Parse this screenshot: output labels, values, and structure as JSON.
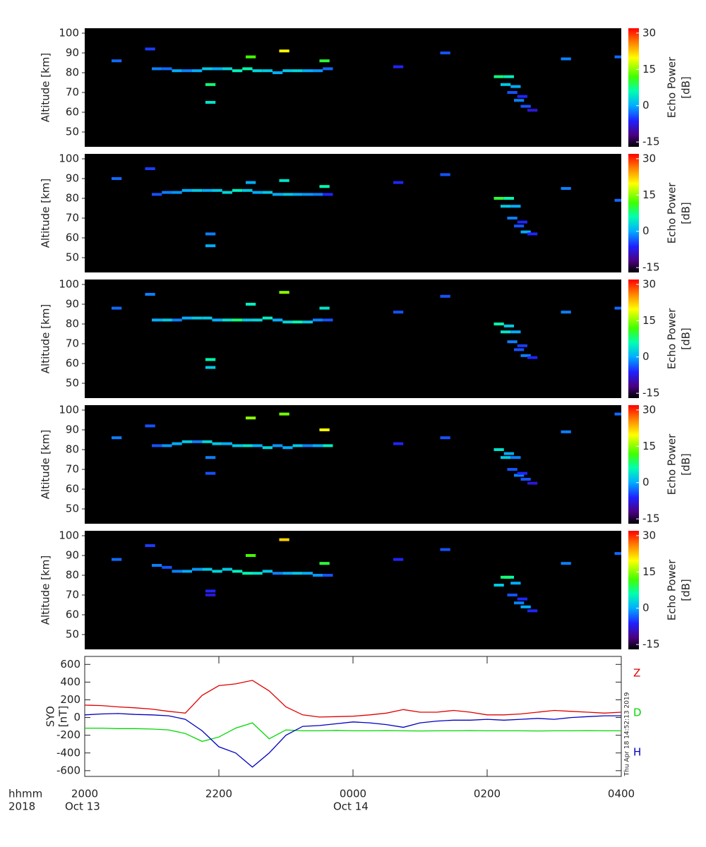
{
  "chart_data": [
    {
      "type": "heatmap",
      "ylabel": "Altitude [km]",
      "xlim": [
        20,
        28
      ],
      "ylim": [
        42.5,
        102.5
      ],
      "yticks": [
        50,
        60,
        70,
        80,
        90,
        100
      ],
      "colorbar": {
        "label": [
          "Echo Power",
          "[dB]"
        ],
        "clim": [
          -17,
          32
        ],
        "ticks": [
          -15,
          0,
          15,
          30
        ]
      },
      "x": [
        21.0,
        21.15,
        21.3,
        21.45,
        21.6,
        21.75,
        21.9,
        22.05,
        22.2,
        22.35,
        22.5,
        22.65,
        22.8,
        22.95,
        23.1,
        23.25,
        23.4,
        23.55,
        26.1,
        26.25,
        26.2,
        26.35,
        26.3,
        26.4,
        26.5,
        26.6,
        26.45,
        20.4,
        20.9,
        22.4,
        22.9,
        23.5,
        21.8,
        21.8,
        25.3,
        27.1,
        27.9,
        24.6
      ],
      "y": [
        82,
        82,
        81,
        81,
        81,
        82,
        82,
        82,
        81,
        82,
        81,
        81,
        80,
        81,
        81,
        81,
        81,
        82,
        78,
        78,
        74,
        73,
        70,
        66,
        63,
        61,
        68,
        86,
        92,
        88,
        91,
        86,
        74,
        65,
        90,
        87,
        88,
        83
      ],
      "values": [
        -2,
        -3,
        0,
        -2,
        0,
        2,
        0,
        3,
        5,
        6,
        3,
        2,
        0,
        2,
        3,
        0,
        -1,
        -3,
        8,
        5,
        2,
        0,
        -4,
        -2,
        -4,
        -8,
        -6,
        -3,
        -5,
        12,
        20,
        10,
        8,
        4,
        -4,
        -2,
        -3,
        -6
      ]
    },
    {
      "type": "heatmap",
      "ylabel": "Altitude [km]",
      "xlim": [
        20,
        28
      ],
      "ylim": [
        42.5,
        102.5
      ],
      "yticks": [
        50,
        60,
        70,
        80,
        90,
        100
      ],
      "colorbar": {
        "label": [
          "Echo Power",
          "[dB]"
        ],
        "clim": [
          -17,
          32
        ],
        "ticks": [
          -15,
          0,
          15,
          30
        ]
      },
      "x": [
        21.0,
        21.15,
        21.3,
        21.45,
        21.6,
        21.75,
        21.9,
        22.05,
        22.2,
        22.35,
        22.5,
        22.65,
        22.8,
        22.95,
        23.1,
        23.25,
        23.4,
        23.55,
        26.1,
        26.25,
        26.2,
        26.35,
        26.3,
        26.4,
        26.5,
        26.6,
        26.45,
        20.4,
        20.9,
        22.4,
        22.9,
        23.5,
        21.8,
        21.8,
        25.3,
        27.1,
        27.9,
        24.6
      ],
      "y": [
        82,
        83,
        83,
        84,
        84,
        84,
        84,
        83,
        84,
        84,
        83,
        83,
        82,
        82,
        82,
        82,
        82,
        82,
        80,
        80,
        76,
        76,
        70,
        66,
        63,
        62,
        68,
        90,
        95,
        88,
        89,
        86,
        62,
        56,
        92,
        85,
        79,
        88
      ],
      "values": [
        -4,
        -2,
        -1,
        0,
        2,
        0,
        2,
        3,
        5,
        2,
        0,
        2,
        0,
        2,
        0,
        -1,
        -2,
        -6,
        10,
        6,
        2,
        0,
        -2,
        -4,
        0,
        -6,
        -6,
        -3,
        -5,
        0,
        4,
        6,
        -2,
        0,
        -4,
        -2,
        -3,
        -6
      ]
    },
    {
      "type": "heatmap",
      "ylabel": "Altitude [km]",
      "xlim": [
        20,
        28
      ],
      "ylim": [
        42.5,
        102.5
      ],
      "yticks": [
        50,
        60,
        70,
        80,
        90,
        100
      ],
      "colorbar": {
        "label": [
          "Echo Power",
          "[dB]"
        ],
        "clim": [
          -17,
          32
        ],
        "ticks": [
          -15,
          0,
          15,
          30
        ]
      },
      "x": [
        21.0,
        21.15,
        21.3,
        21.45,
        21.6,
        21.75,
        21.9,
        22.05,
        22.2,
        22.35,
        22.5,
        22.65,
        22.8,
        22.95,
        23.1,
        23.25,
        23.4,
        23.55,
        26.1,
        26.25,
        26.2,
        26.35,
        26.3,
        26.4,
        26.5,
        26.6,
        26.45,
        20.4,
        20.9,
        22.4,
        22.9,
        23.5,
        21.8,
        21.8,
        25.3,
        27.1,
        27.9,
        24.6
      ],
      "y": [
        82,
        82,
        82,
        83,
        83,
        83,
        82,
        82,
        82,
        82,
        82,
        83,
        82,
        81,
        81,
        81,
        82,
        82,
        80,
        79,
        76,
        76,
        71,
        67,
        64,
        63,
        69,
        88,
        95,
        90,
        96,
        88,
        62,
        58,
        94,
        86,
        88,
        86
      ],
      "values": [
        0,
        2,
        -2,
        0,
        2,
        2,
        0,
        4,
        8,
        2,
        3,
        5,
        0,
        3,
        6,
        2,
        -2,
        -4,
        6,
        2,
        4,
        0,
        -2,
        -4,
        -2,
        -6,
        -5,
        -3,
        -2,
        5,
        15,
        4,
        6,
        2,
        -4,
        -2,
        -3,
        -4
      ]
    },
    {
      "type": "heatmap",
      "ylabel": "Altitude [km]",
      "xlim": [
        20,
        28
      ],
      "ylim": [
        42.5,
        102.5
      ],
      "yticks": [
        50,
        60,
        70,
        80,
        90,
        100
      ],
      "colorbar": {
        "label": [
          "Echo Power",
          "[dB]"
        ],
        "clim": [
          -17,
          32
        ],
        "ticks": [
          -15,
          0,
          15,
          30
        ]
      },
      "x": [
        21.0,
        21.15,
        21.3,
        21.45,
        21.6,
        21.75,
        21.9,
        22.05,
        22.2,
        22.35,
        22.5,
        22.65,
        22.8,
        22.95,
        23.1,
        23.25,
        23.4,
        23.55,
        26.1,
        26.25,
        26.2,
        26.35,
        26.3,
        26.4,
        26.5,
        26.6,
        26.45,
        20.4,
        20.9,
        22.4,
        22.9,
        23.5,
        21.8,
        21.8,
        25.3,
        27.1,
        27.9,
        24.6
      ],
      "y": [
        82,
        82,
        83,
        84,
        84,
        84,
        83,
        83,
        82,
        82,
        82,
        81,
        82,
        81,
        82,
        82,
        82,
        82,
        80,
        78,
        76,
        76,
        70,
        67,
        65,
        63,
        68,
        86,
        92,
        96,
        98,
        90,
        76,
        68,
        86,
        89,
        98,
        83
      ],
      "values": [
        -4,
        -1,
        0,
        2,
        -2,
        3,
        2,
        0,
        2,
        4,
        0,
        3,
        -1,
        0,
        2,
        -2,
        0,
        5,
        4,
        0,
        2,
        -2,
        -4,
        -2,
        -4,
        -8,
        -6,
        -2,
        -4,
        15,
        14,
        20,
        -2,
        -4,
        -4,
        -2,
        -3,
        -6
      ]
    },
    {
      "type": "heatmap",
      "ylabel": "Altitude [km]",
      "xlim": [
        20,
        28
      ],
      "ylim": [
        42.5,
        102.5
      ],
      "yticks": [
        50,
        60,
        70,
        80,
        90,
        100
      ],
      "colorbar": {
        "label": [
          "Echo Power",
          "[dB]"
        ],
        "clim": [
          -17,
          32
        ],
        "ticks": [
          -15,
          0,
          15,
          30
        ]
      },
      "x": [
        21.0,
        21.15,
        21.3,
        21.45,
        21.6,
        21.75,
        21.9,
        22.05,
        22.2,
        22.35,
        22.5,
        22.65,
        22.8,
        22.95,
        23.1,
        23.25,
        23.4,
        23.55,
        26.1,
        26.25,
        26.2,
        26.35,
        26.3,
        26.4,
        26.5,
        26.6,
        26.45,
        20.4,
        20.9,
        22.4,
        22.9,
        23.5,
        21.8,
        21.8,
        25.3,
        27.1,
        27.9,
        24.6
      ],
      "y": [
        85,
        84,
        82,
        82,
        83,
        83,
        82,
        83,
        82,
        81,
        81,
        82,
        81,
        81,
        81,
        81,
        80,
        80,
        75,
        79,
        79,
        76,
        70,
        66,
        64,
        62,
        68,
        88,
        95,
        90,
        98,
        86,
        72,
        70,
        93,
        86,
        91,
        88
      ],
      "values": [
        -2,
        -4,
        -2,
        0,
        -1,
        2,
        3,
        2,
        5,
        6,
        4,
        2,
        -2,
        0,
        2,
        0,
        -1,
        -4,
        2,
        6,
        8,
        0,
        -4,
        -2,
        0,
        -6,
        -6,
        -3,
        -5,
        12,
        22,
        10,
        -6,
        -8,
        -4,
        -2,
        -3,
        -6
      ]
    },
    {
      "type": "line",
      "ylabel": [
        "SYO",
        "[nT]"
      ],
      "xlabel": [
        "hhmm",
        "2018"
      ],
      "annotation": "Thu Apr 18 14:52:13 2019",
      "xlim": [
        20,
        28
      ],
      "xticks": [
        {
          "value": 20,
          "label": "2000"
        },
        {
          "value": 22,
          "label": "2200"
        },
        {
          "value": 24,
          "label": "0000"
        },
        {
          "value": 26,
          "label": "0200"
        },
        {
          "value": 28,
          "label": "0400"
        }
      ],
      "date_labels": [
        {
          "value": 20,
          "label": "Oct 13"
        },
        {
          "value": 24,
          "label": "Oct 14"
        }
      ],
      "ylim": [
        -665,
        690
      ],
      "yticks": [
        600,
        400,
        200,
        0,
        -200,
        -400,
        -600
      ],
      "x": [
        20,
        20.25,
        20.5,
        20.75,
        21,
        21.25,
        21.5,
        21.75,
        22,
        22.25,
        22.5,
        22.75,
        23,
        23.25,
        23.5,
        23.75,
        24,
        24.25,
        24.5,
        24.75,
        25,
        25.25,
        25.5,
        25.75,
        26,
        26.25,
        26.5,
        26.75,
        27,
        27.25,
        27.5,
        27.75,
        28
      ],
      "series": [
        {
          "name": "Z",
          "color": "#e00000",
          "values": [
            140,
            135,
            120,
            110,
            95,
            70,
            50,
            250,
            360,
            380,
            420,
            300,
            120,
            30,
            5,
            10,
            15,
            30,
            50,
            90,
            60,
            60,
            80,
            60,
            30,
            30,
            40,
            60,
            80,
            70,
            60,
            50,
            60
          ]
        },
        {
          "name": "D",
          "color": "#00d800",
          "values": [
            -120,
            -120,
            -125,
            -125,
            -130,
            -140,
            -180,
            -270,
            -220,
            -120,
            -60,
            -240,
            -140,
            -150,
            -150,
            -145,
            -150,
            -150,
            -148,
            -150,
            -152,
            -150,
            -150,
            -148,
            -150,
            -150,
            -150,
            -152,
            -150,
            -150,
            -148,
            -150,
            -150
          ]
        },
        {
          "name": "H",
          "color": "#0000c0",
          "values": [
            30,
            40,
            45,
            35,
            30,
            20,
            -20,
            -150,
            -330,
            -400,
            -560,
            -400,
            -200,
            -100,
            -90,
            -70,
            -50,
            -60,
            -80,
            -110,
            -60,
            -40,
            -30,
            -30,
            -20,
            -30,
            -20,
            -10,
            -20,
            0,
            10,
            20,
            20
          ]
        }
      ]
    }
  ]
}
